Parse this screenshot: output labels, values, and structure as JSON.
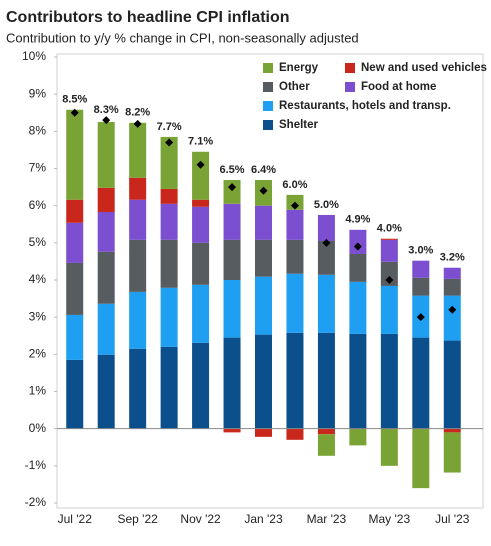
{
  "chart_data": {
    "type": "stacked_bar",
    "title": "Contributors to headline CPI inflation",
    "subtitle": "Contribution to y/y % change in CPI, non-seasonally adjusted",
    "categories": [
      "Jul '22",
      null,
      "Sep '22",
      null,
      "Nov '22",
      null,
      "Jan '23",
      null,
      "Mar '23",
      null,
      "May '23",
      null,
      "Jul '23"
    ],
    "series": [
      {
        "name": "Shelter",
        "color": "#0b4f8c",
        "values": [
          1.85,
          1.99,
          2.15,
          2.2,
          2.31,
          2.45,
          2.53,
          2.58,
          2.58,
          2.55,
          2.55,
          2.45,
          2.37
        ]
      },
      {
        "name": "Restaurants, hotels and transp.",
        "color": "#1e9ff2",
        "values": [
          1.21,
          1.37,
          1.53,
          1.59,
          1.56,
          1.55,
          1.56,
          1.59,
          1.56,
          1.4,
          1.29,
          1.13,
          1.21
        ]
      },
      {
        "name": "Other",
        "color": "#575c61",
        "values": [
          1.4,
          1.4,
          1.4,
          1.29,
          1.13,
          1.08,
          0.99,
          0.91,
          0.91,
          0.75,
          0.65,
          0.48,
          0.45
        ]
      },
      {
        "name": "Food at home",
        "color": "#7b4fd0",
        "values": [
          1.08,
          1.07,
          1.08,
          0.97,
          0.97,
          0.97,
          0.92,
          0.81,
          0.7,
          0.65,
          0.59,
          0.46,
          0.3
        ]
      },
      {
        "name": "New and used vehicles",
        "color": "#c9261c",
        "values": [
          0.62,
          0.65,
          0.59,
          0.4,
          0.19,
          -0.1,
          -0.22,
          -0.3,
          -0.15,
          0,
          0.03,
          0,
          -0.1
        ]
      },
      {
        "name": "Energy",
        "color": "#7aa336",
        "values": [
          2.42,
          1.77,
          1.48,
          1.4,
          1.29,
          0.64,
          0.69,
          0.4,
          -0.58,
          -0.45,
          -1.0,
          -1.6,
          -1.08
        ]
      }
    ],
    "headline": {
      "color": "#000000",
      "values": [
        8.5,
        8.3,
        8.2,
        7.7,
        7.1,
        6.5,
        6.4,
        6.0,
        5.0,
        4.9,
        4.0,
        3.0,
        3.2
      ],
      "value_labels": [
        "8.5%",
        "8.3%",
        "8.2%",
        "7.7%",
        "7.1%",
        "6.5%",
        "6.4%",
        "6.0%",
        "5.0%",
        "4.9%",
        "4.0%",
        "3.0%",
        "3.2%"
      ]
    },
    "ylim": [
      -2,
      10
    ],
    "yticks": [
      {
        "value": -2,
        "label": "-2%"
      },
      {
        "value": -1,
        "label": "-1%"
      },
      {
        "value": 0,
        "label": "0%"
      },
      {
        "value": 1,
        "label": "1%"
      },
      {
        "value": 2,
        "label": "2%"
      },
      {
        "value": 3,
        "label": "3%"
      },
      {
        "value": 4,
        "label": "4%"
      },
      {
        "value": 5,
        "label": "5%"
      },
      {
        "value": 6,
        "label": "6%"
      },
      {
        "value": 7,
        "label": "7%"
      },
      {
        "value": 8,
        "label": "8%"
      },
      {
        "value": 9,
        "label": "9%"
      },
      {
        "value": 10,
        "label": "10%"
      }
    ]
  }
}
